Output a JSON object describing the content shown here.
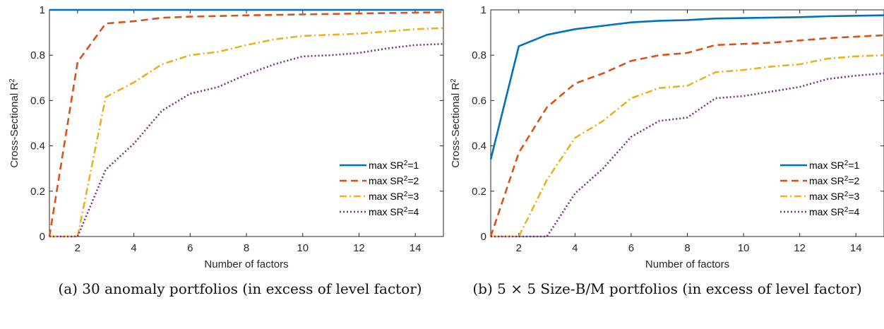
{
  "chart_data": [
    {
      "type": "line",
      "caption": "(a) 30 anomaly portfolios (in excess of level factor)",
      "xlabel": "Number of factors",
      "ylabel": "Cross-Sectional R",
      "ylabel_sup": "2",
      "xlim": [
        1,
        15
      ],
      "ylim": [
        0,
        1
      ],
      "xticks": [
        2,
        4,
        6,
        8,
        10,
        12,
        14
      ],
      "yticks": [
        0,
        0.2,
        0.4,
        0.6,
        0.8,
        1
      ],
      "ytick_labels": [
        "0",
        "0.2",
        "0.4",
        "0.6",
        "0.8",
        "1"
      ],
      "legend_position": "bottom-right",
      "x": [
        1,
        2,
        3,
        4,
        5,
        6,
        7,
        8,
        9,
        10,
        11,
        12,
        13,
        14,
        15
      ],
      "series": [
        {
          "name": "max SR",
          "sup": "2",
          "suffix": "=1",
          "color": "#0072BD",
          "style": "solid",
          "values": [
            1,
            1,
            1,
            1,
            1,
            1,
            1,
            1,
            1,
            1,
            1,
            1,
            1,
            1,
            1
          ]
        },
        {
          "name": "max SR",
          "sup": "2",
          "suffix": "=2",
          "color": "#D95319",
          "style": "dashed",
          "values": [
            0,
            0.77,
            0.94,
            0.95,
            0.965,
            0.97,
            0.973,
            0.976,
            0.978,
            0.98,
            0.982,
            0.984,
            0.986,
            0.988,
            0.99
          ]
        },
        {
          "name": "max SR",
          "sup": "2",
          "suffix": "=3",
          "color": "#EDB120",
          "style": "dashdot",
          "values": [
            0,
            0,
            0.615,
            0.68,
            0.76,
            0.8,
            0.815,
            0.845,
            0.87,
            0.885,
            0.89,
            0.895,
            0.905,
            0.915,
            0.92
          ]
        },
        {
          "name": "max SR",
          "sup": "2",
          "suffix": "=4",
          "color": "#7E2F8E",
          "style": "dotted",
          "values": [
            0,
            0,
            0.295,
            0.41,
            0.555,
            0.63,
            0.66,
            0.715,
            0.76,
            0.795,
            0.8,
            0.81,
            0.83,
            0.845,
            0.85
          ]
        }
      ]
    },
    {
      "type": "line",
      "caption": "(b) 5 × 5 Size-B/M portfolios (in excess of level factor)",
      "xlabel": "Number of factors",
      "ylabel": "Cross-Sectional R",
      "ylabel_sup": "2",
      "xlim": [
        1,
        15
      ],
      "ylim": [
        0,
        1
      ],
      "xticks": [
        2,
        4,
        6,
        8,
        10,
        12,
        14
      ],
      "yticks": [
        0,
        0.2,
        0.4,
        0.6,
        0.8,
        1
      ],
      "ytick_labels": [
        "0",
        "0.2",
        "0.4",
        "0.6",
        "0.8",
        "1"
      ],
      "legend_position": "bottom-right",
      "x": [
        1,
        2,
        3,
        4,
        5,
        6,
        7,
        8,
        9,
        10,
        11,
        12,
        13,
        14,
        15
      ],
      "series": [
        {
          "name": "max SR",
          "sup": "2",
          "suffix": "=1",
          "color": "#0072BD",
          "style": "solid",
          "values": [
            0.34,
            0.84,
            0.89,
            0.915,
            0.93,
            0.945,
            0.952,
            0.955,
            0.962,
            0.964,
            0.966,
            0.968,
            0.972,
            0.974,
            0.976
          ]
        },
        {
          "name": "max SR",
          "sup": "2",
          "suffix": "=2",
          "color": "#D95319",
          "style": "dashed",
          "values": [
            0,
            0.37,
            0.57,
            0.675,
            0.72,
            0.775,
            0.8,
            0.81,
            0.845,
            0.85,
            0.855,
            0.865,
            0.875,
            0.882,
            0.888
          ]
        },
        {
          "name": "max SR",
          "sup": "2",
          "suffix": "=3",
          "color": "#EDB120",
          "style": "dashdot",
          "values": [
            0,
            0,
            0.25,
            0.435,
            0.51,
            0.61,
            0.655,
            0.665,
            0.725,
            0.735,
            0.75,
            0.76,
            0.785,
            0.795,
            0.8
          ]
        },
        {
          "name": "max SR",
          "sup": "2",
          "suffix": "=4",
          "color": "#7E2F8E",
          "style": "dotted",
          "values": [
            0,
            0,
            0,
            0.19,
            0.3,
            0.44,
            0.51,
            0.525,
            0.61,
            0.62,
            0.64,
            0.66,
            0.695,
            0.71,
            0.72
          ]
        }
      ]
    }
  ]
}
